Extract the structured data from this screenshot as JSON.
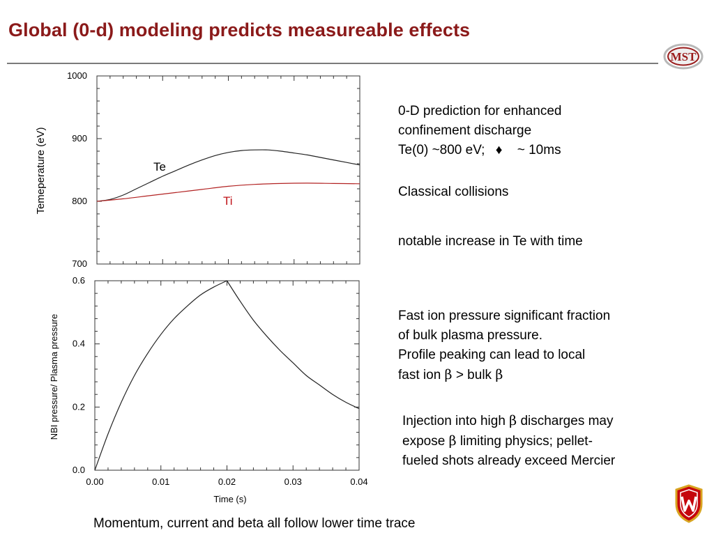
{
  "slide": {
    "title": "Global (0-d) modeling predicts measureable effects",
    "logo_text": "MST",
    "footer": "Momentum, current and beta all follow lower time trace"
  },
  "notes": {
    "prediction": {
      "line1": "0-D prediction for enhanced",
      "line2": "confinement discharge",
      "line3_a": "Te(0) ~800 eV;",
      "line3_symbol": "♦",
      "line3_b": "~ 10ms"
    },
    "collisions": "Classical collisions",
    "increase": "notable increase in Te  with time",
    "fast_ion": {
      "line1": "Fast ion pressure significant fraction",
      "line2": "of bulk plasma pressure.",
      "line3": "Profile peaking can lead to local",
      "line4_a": "fast ion",
      "line4_b": "> bulk",
      "beta": "β"
    },
    "injection": {
      "line1_a": "Injection into high",
      "line1_b": "discharges may",
      "line2_a": "expose",
      "line2_b": "limiting physics; pellet-",
      "line3": "fueled shots already exceed Mercier",
      "beta": "β"
    }
  },
  "colors": {
    "title": "#8b1a1a",
    "te_line": "#222222",
    "ti_line": "#b22222",
    "ti_label": "#c0141a"
  },
  "chart_data": [
    {
      "type": "line",
      "title": "",
      "xlabel": "",
      "ylabel": "Temeperature (eV)",
      "xlim": [
        0.0,
        0.04
      ],
      "ylim": [
        700,
        1000
      ],
      "yticks": [
        "700",
        "800",
        "900",
        "1000"
      ],
      "grid": false,
      "series": [
        {
          "name": "Te",
          "x": [
            0.0,
            0.002,
            0.004,
            0.006,
            0.008,
            0.01,
            0.012,
            0.014,
            0.016,
            0.018,
            0.02,
            0.022,
            0.024,
            0.026,
            0.028,
            0.03,
            0.032,
            0.034,
            0.036,
            0.038,
            0.04
          ],
          "y": [
            800,
            803,
            810,
            820,
            830,
            840,
            849,
            858,
            866,
            873,
            878,
            881,
            882,
            882,
            880,
            877,
            874,
            870,
            866,
            862,
            858
          ]
        },
        {
          "name": "Ti",
          "x": [
            0.0,
            0.004,
            0.008,
            0.012,
            0.016,
            0.02,
            0.024,
            0.028,
            0.032,
            0.036,
            0.04
          ],
          "y": [
            800,
            804,
            809,
            814,
            819,
            824,
            827,
            828.5,
            829,
            828.5,
            828
          ]
        }
      ]
    },
    {
      "type": "line",
      "title": "",
      "xlabel": "Time (s)",
      "ylabel": "NBI pressure/ Plasma pressure",
      "xlim": [
        0.0,
        0.04
      ],
      "ylim": [
        0.0,
        0.6
      ],
      "xticks": [
        "0.00",
        "0.01",
        "0.02",
        "0.03",
        "0.04"
      ],
      "yticks": [
        "0.0",
        "0.2",
        "0.4",
        "0.6"
      ],
      "grid": false,
      "series": [
        {
          "name": "",
          "x": [
            0.0,
            0.002,
            0.004,
            0.006,
            0.008,
            0.01,
            0.012,
            0.014,
            0.016,
            0.018,
            0.02,
            0.022,
            0.024,
            0.026,
            0.028,
            0.03,
            0.032,
            0.034,
            0.036,
            0.038,
            0.04
          ],
          "y": [
            0.0,
            0.115,
            0.215,
            0.3,
            0.37,
            0.43,
            0.48,
            0.52,
            0.555,
            0.58,
            0.6,
            0.535,
            0.475,
            0.425,
            0.38,
            0.34,
            0.3,
            0.27,
            0.24,
            0.215,
            0.195
          ]
        }
      ]
    }
  ]
}
